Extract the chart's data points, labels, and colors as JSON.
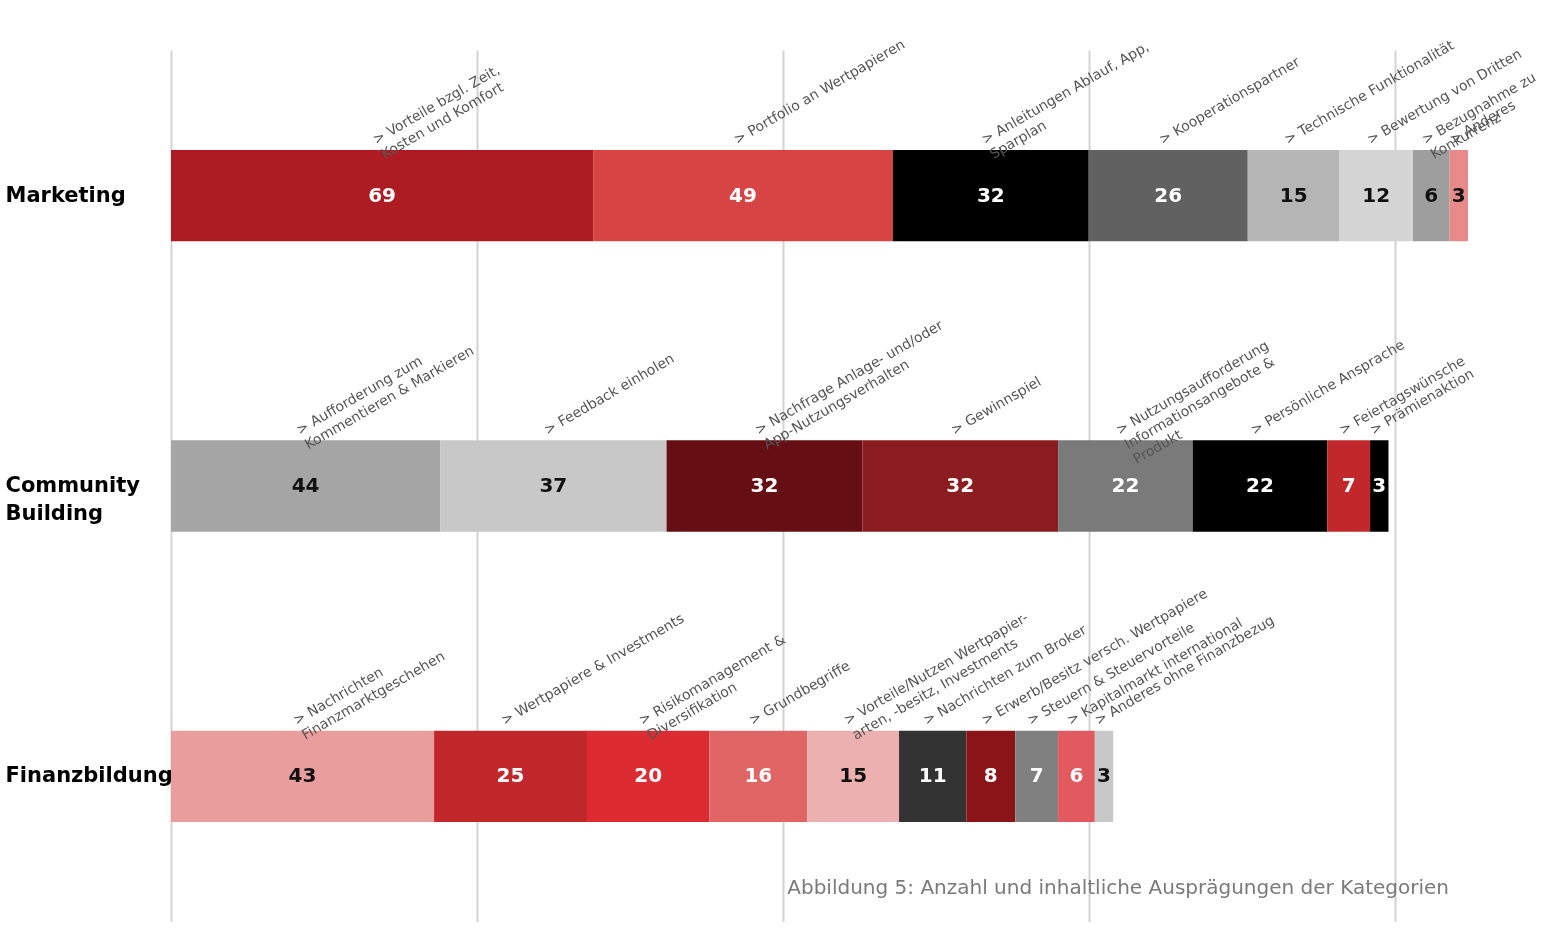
{
  "chart_data": {
    "type": "bar",
    "orientation": "horizontal",
    "stacked": true,
    "data_labels": true,
    "grid": "x",
    "tick_labels": "y",
    "categories": [
      "Marketing",
      "Community\nBuilding",
      "Finanzbildung"
    ],
    "xticks": [
      {
        "value": 0,
        "label": null
      },
      {
        "value": 50,
        "label": null
      },
      {
        "value": 100,
        "label": null
      },
      {
        "value": 150,
        "label": null
      },
      {
        "value": 200,
        "label": null
      }
    ],
    "annotations": [
      "Abbildung 5: Anzahl und inhaltliche Ausprägungen der Kategorien"
    ],
    "series": [
      {
        "name": "> Vorteile bzgl. Zeit,\nKosten und Komfort",
        "color": "#ad1c22",
        "values": [
          69,
          null,
          null
        ]
      },
      {
        "name": "> Portfolio an Wertpapieren",
        "color": "#d64444",
        "values": [
          49,
          null,
          null
        ]
      },
      {
        "name": "> Anleitungen Ablauf, App,\nSparplan",
        "color": "#000000",
        "values": [
          32,
          null,
          null
        ]
      },
      {
        "name": "> Kooperationspartner",
        "color": "#616161",
        "values": [
          26,
          null,
          null
        ]
      },
      {
        "name": "> Technische Funktionalität",
        "color": "#b5b5b5",
        "values": [
          15,
          null,
          null
        ]
      },
      {
        "name": "> Bewertung von Dritten",
        "color": "#d4d4d4",
        "values": [
          12,
          null,
          null
        ]
      },
      {
        "name": "> Bezugnahme zu\nKonkurrenz",
        "color": "#9e9e9e",
        "values": [
          6,
          null,
          null
        ]
      },
      {
        "name": "> Anderes",
        "color": "#e88a8a",
        "values": [
          3,
          null,
          null
        ]
      },
      {
        "name": "> Aufforderung zum\nKommentieren & Markieren",
        "color": "#a5a5a5",
        "values": [
          null,
          44,
          null
        ]
      },
      {
        "name": "> Feedback einholen",
        "color": "#c8c8c8",
        "values": [
          null,
          37,
          null
        ]
      },
      {
        "name": "> Nachfrage Anlage- und/oder\nApp-Nutzungsverhalten",
        "color": "#650f14",
        "values": [
          null,
          32,
          null
        ]
      },
      {
        "name": "> Gewinnspiel",
        "color": "#8b1c20",
        "values": [
          null,
          32,
          null
        ]
      },
      {
        "name": "> Nutzungsaufforderung\nInformationsangebote &\nProdukt",
        "color": "#7a7a7a",
        "values": [
          null,
          22,
          null
        ]
      },
      {
        "name": "> Persönliche Ansprache",
        "color": "#000000",
        "values": [
          null,
          22,
          null
        ]
      },
      {
        "name": "> Feiertagswünsche",
        "color": "#c0282c",
        "values": [
          null,
          7,
          null
        ]
      },
      {
        "name": "> Prämienaktion",
        "color": "#000000",
        "values": [
          null,
          3,
          null
        ]
      },
      {
        "name": "> Nachrichten\nFinanzmarktgeschehen",
        "color": "#e99d9d",
        "values": [
          null,
          null,
          43
        ]
      },
      {
        "name": "> Wertpapiere & Investments",
        "color": "#c0282c",
        "values": [
          null,
          null,
          25
        ]
      },
      {
        "name": "> Risikomanagement &\nDiversifikation",
        "color": "#dc2c32",
        "values": [
          null,
          null,
          20
        ]
      },
      {
        "name": "> Grundbegriffe",
        "color": "#e06565",
        "values": [
          null,
          null,
          16
        ]
      },
      {
        "name": "> Vorteile/Nutzen Wertpapier-\narten, -besitz, Investments",
        "color": "#edb0b0",
        "values": [
          null,
          null,
          15
        ]
      },
      {
        "name": "> Nachrichten zum Broker",
        "color": "#333333",
        "values": [
          null,
          null,
          11
        ]
      },
      {
        "name": "> Erwerb/Besitz versch. Wertpapiere",
        "color": "#8b1419",
        "values": [
          null,
          null,
          8
        ]
      },
      {
        "name": "> Steuern & Steuervorteile",
        "color": "#808080",
        "values": [
          null,
          null,
          7
        ]
      },
      {
        "name": "> Kapitalmarkt international",
        "color": "#e05a5f",
        "values": [
          null,
          null,
          6
        ]
      },
      {
        "name": "> Anderes ohne Finanzbezug",
        "color": "#c8c8c8",
        "values": [
          null,
          null,
          3
        ]
      }
    ]
  }
}
